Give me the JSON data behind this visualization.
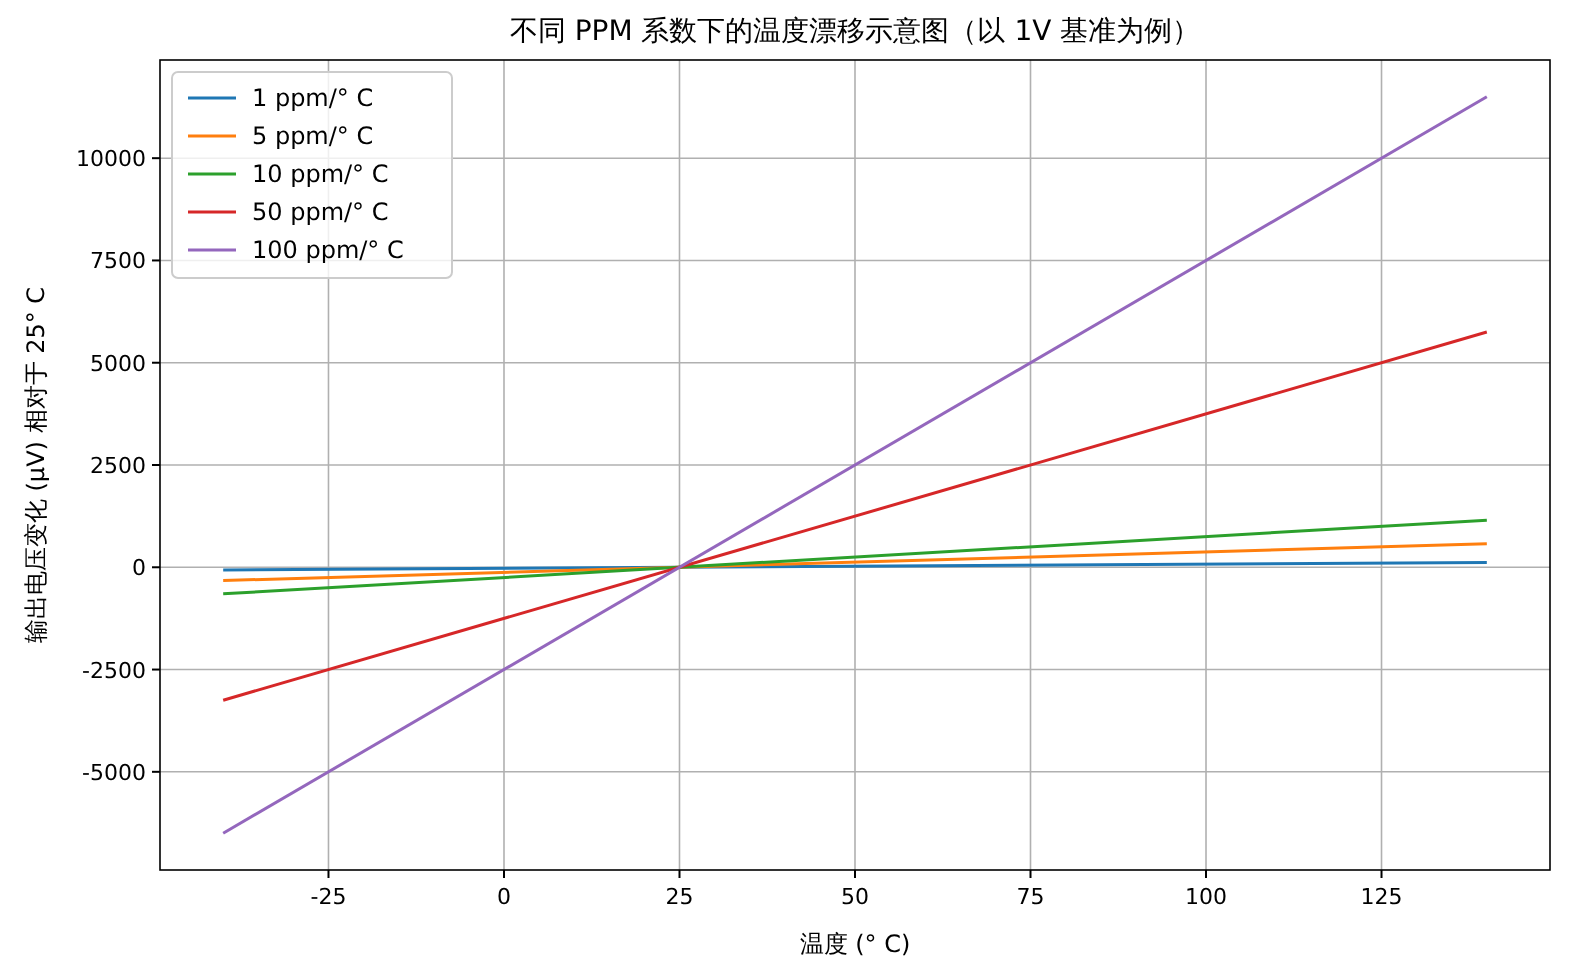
{
  "chart_data": {
    "type": "line",
    "title": "不同 PPM 系数下的温度漂移示意图（以 1V 基准为例）",
    "xlabel": "温度 (° C)",
    "ylabel": "输出电压变化 (μV) 相对于 25° C",
    "x": [
      -40,
      140
    ],
    "series": [
      {
        "name": "1 ppm/° C",
        "color": "#1f77b4",
        "values": [
          -65,
          115
        ]
      },
      {
        "name": "5 ppm/° C",
        "color": "#ff7f0e",
        "values": [
          -325,
          575
        ]
      },
      {
        "name": "10 ppm/° C",
        "color": "#2ca02c",
        "values": [
          -650,
          1150
        ]
      },
      {
        "name": "50 ppm/° C",
        "color": "#d62728",
        "values": [
          -3250,
          5750
        ]
      },
      {
        "name": "100 ppm/° C",
        "color": "#9467bd",
        "values": [
          -6500,
          11500
        ]
      }
    ],
    "xlim": [
      -49,
      149
    ],
    "xticks": [
      -25,
      0,
      25,
      50,
      75,
      100,
      125
    ],
    "ylim": [
      -7400,
      12400
    ],
    "yticks": [
      -5000,
      -2500,
      0,
      2500,
      5000,
      7500,
      10000
    ],
    "grid": true,
    "legend": "top left",
    "marker": "none",
    "line_style": "solid"
  }
}
